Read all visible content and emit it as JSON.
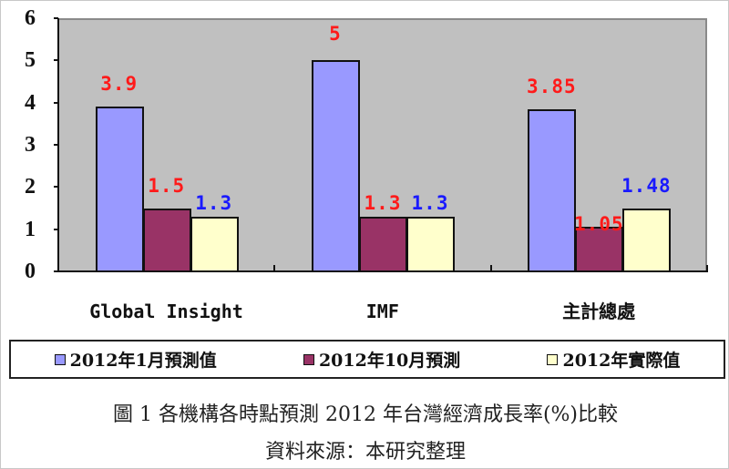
{
  "chart_data": {
    "type": "bar",
    "title": "圖1 各機構各時點預測2012年台灣經濟成長率(%)比較",
    "source": "資料來源：本研究整理",
    "xlabel": "",
    "ylabel": "",
    "ylim": [
      0,
      6
    ],
    "yticks": [
      "0",
      "1",
      "2",
      "3",
      "4",
      "5",
      "6"
    ],
    "grid": false,
    "legend_position": "bottom",
    "categories": [
      "Global Insight",
      "IMF",
      "主計總處"
    ],
    "series": [
      {
        "name": "2012年1月預測值",
        "color": "#9999ff",
        "values": [
          3.9,
          5,
          3.85
        ],
        "labels": [
          "3.9",
          "5",
          "3.85"
        ],
        "label_color": "#ff1a1a"
      },
      {
        "name": "2012年10月預測",
        "color": "#993366",
        "values": [
          1.5,
          1.3,
          1.05
        ],
        "labels": [
          "1.5",
          "1.3",
          "1.05"
        ],
        "label_color": "#ff1a1a"
      },
      {
        "name": "2012年實際值",
        "color": "#ffffcc",
        "values": [
          1.3,
          1.3,
          1.48
        ],
        "labels": [
          "1.3",
          "1.3",
          "1.48"
        ],
        "label_color": "#1a1aff"
      }
    ]
  },
  "caption": {
    "figure_title": "圖 1 各機構各時點預測 2012 年台灣經濟成長率(%)比較",
    "source_note": "資料來源：本研究整理"
  },
  "colors": {
    "plot_background": "#c0c0c0",
    "red_label": "#ff1a1a",
    "blue_label": "#1a1aff"
  }
}
